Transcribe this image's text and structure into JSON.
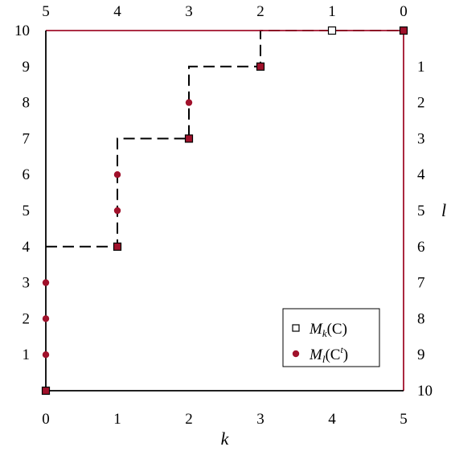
{
  "chart_data": {
    "type": "scatter",
    "xlabel": "k",
    "ylabel_right": "l",
    "xlim": [
      0,
      5
    ],
    "ylim": [
      0,
      10
    ],
    "x_ticks": [
      "0",
      "1",
      "2",
      "3",
      "4",
      "5"
    ],
    "x_ticks_top": [
      "5",
      "4",
      "3",
      "2",
      "1",
      "0"
    ],
    "y_ticks_left": [
      "1",
      "2",
      "3",
      "4",
      "5",
      "6",
      "7",
      "8",
      "9",
      "10"
    ],
    "y_ticks_right": [
      "1",
      "2",
      "3",
      "4",
      "5",
      "6",
      "7",
      "8",
      "9",
      "10"
    ],
    "legend_position": "bottom-right",
    "staircase": {
      "x": [
        0,
        1,
        1,
        2,
        2,
        3,
        3,
        5
      ],
      "y": [
        4,
        4,
        7,
        7,
        9,
        9,
        10,
        10
      ]
    },
    "series": [
      {
        "name": "M_k(C)",
        "legend": {
          "base": "M",
          "sub": "k",
          "arg": "(C)"
        },
        "marker": "open-square",
        "color": "#000000",
        "points": [
          [
            0,
            0
          ],
          [
            1,
            4
          ],
          [
            2,
            7
          ],
          [
            3,
            9
          ],
          [
            4,
            10
          ],
          [
            5,
            10
          ]
        ]
      },
      {
        "name": "M_l(C^t)",
        "legend": {
          "base": "M",
          "sub": "l",
          "arg": "(C",
          "sup": "t",
          "close": ")"
        },
        "marker": "circle",
        "color": "#a0112b",
        "points": [
          [
            0,
            0
          ],
          [
            0,
            1
          ],
          [
            0,
            2
          ],
          [
            0,
            3
          ],
          [
            1,
            4
          ],
          [
            1,
            5
          ],
          [
            1,
            6
          ],
          [
            2,
            7
          ],
          [
            2,
            8
          ],
          [
            3,
            9
          ],
          [
            5,
            10
          ]
        ]
      }
    ],
    "colors": {
      "frame_left_bottom": "#000000",
      "frame_top_right": "#a0112b",
      "filled_square": "#a0112b"
    }
  }
}
